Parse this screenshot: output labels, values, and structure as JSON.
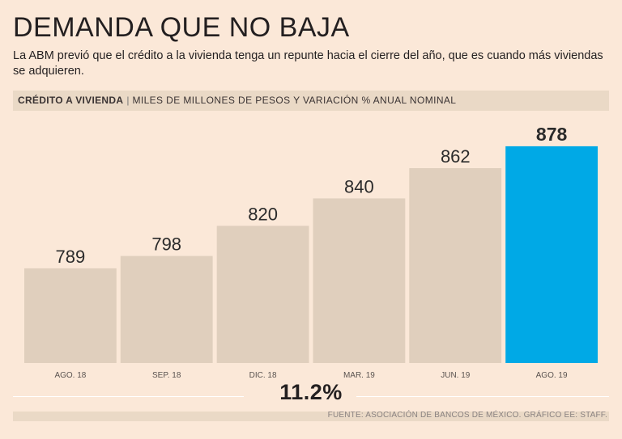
{
  "header": {
    "title": "DEMANDA QUE NO BAJA",
    "subtitle": "La ABM previó que el crédito a la vivienda tenga un repunte hacia el cierre del año, que es cuando más viviendas se adquieren.",
    "band_bold": "CRÉDITO A VIVIENDA",
    "band_sep": "|",
    "band_rest": "MILES DE MILLONES DE PESOS Y VARIACIÓN % ANUAL NOMINAL"
  },
  "chart_data": {
    "type": "bar",
    "title": "",
    "xlabel": "",
    "ylabel": "",
    "categories": [
      "AGO. 18",
      "SEP. 18",
      "DIC. 18",
      "MAR. 19",
      "JUN. 19",
      "AGO. 19"
    ],
    "values": [
      789,
      798,
      820,
      840,
      862,
      878
    ],
    "ylim": [
      720,
      885
    ],
    "highlight_index": 5,
    "colors": {
      "bar": "#e0cfbd",
      "highlight": "#00a9e6",
      "label": "#2b2b2b",
      "tick": "#5a5350"
    },
    "grid": false
  },
  "annotation": {
    "variation": "11.2%"
  },
  "footer": {
    "source": "FUENTE: ASOCIACIÓN DE BANCOS DE MÉXICO. GRÁFICO EE: STAFF."
  }
}
